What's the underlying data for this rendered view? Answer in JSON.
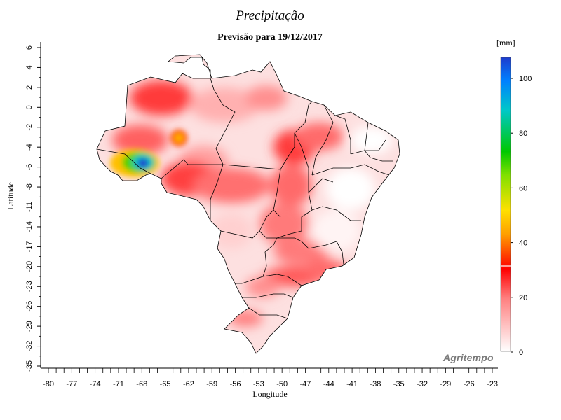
{
  "title": "Precipitação",
  "subtitle": "Previsão para 19/12/2017",
  "y_axis_label": "Latitude",
  "x_axis_label": "Longitude",
  "legend_unit": "[mm]",
  "watermark": "Agritempo",
  "y_ticks": [
    "6",
    "4",
    "2",
    "0",
    "-2",
    "-4",
    "-6",
    "-8",
    "-11",
    "-14",
    "-17",
    "-20",
    "-23",
    "-26",
    "-29",
    "-32",
    "-35"
  ],
  "x_ticks": [
    "-80",
    "-77",
    "-74",
    "-71",
    "-68",
    "-65",
    "-62",
    "-59",
    "-56",
    "-53",
    "-50",
    "-47",
    "-44",
    "-41",
    "-38",
    "-35",
    "-32",
    "-29",
    "-26",
    "-23"
  ],
  "legend_ticks": [
    "100",
    "80",
    "60",
    "40",
    "20",
    "0"
  ],
  "colors": {
    "max": "#1e3ccd",
    "high": "#00c8c8",
    "mid_high": "#00c800",
    "mid": "#ffc800",
    "low": "#ff0000",
    "zero": "#ffffff",
    "border": "#000000"
  }
}
